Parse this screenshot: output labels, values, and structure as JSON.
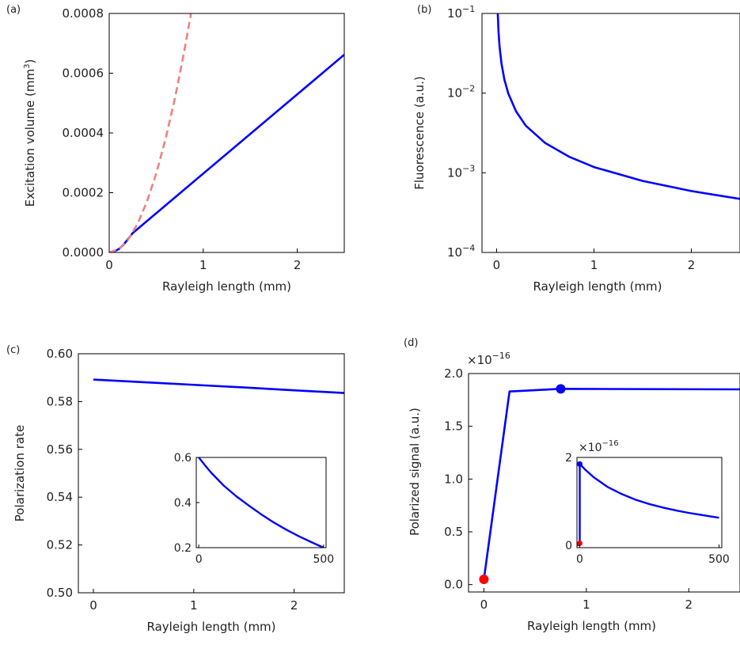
{
  "chart_data": [
    {
      "id": "a",
      "panel_label": "(a)",
      "type": "line",
      "xlabel": "Rayleigh length (mm)",
      "ylabel": "Excitation volume (mm³)",
      "xlim": [
        0,
        2.5
      ],
      "ylim": [
        0,
        0.0008
      ],
      "xticks": [
        0,
        1,
        2
      ],
      "xtick_labels": [
        "0",
        "1",
        "2"
      ],
      "yticks": [
        0,
        0.0002,
        0.0004,
        0.0006,
        0.0008
      ],
      "ytick_labels": [
        "0.0000",
        "0.0002",
        "0.0004",
        "0.0006",
        "0.0008"
      ],
      "grid": false,
      "series": [
        {
          "style": "solid",
          "color": "#0000ff",
          "x": [
            0,
            0.05,
            0.1,
            0.15,
            0.2,
            0.25,
            2.5
          ],
          "y": [
            0,
            3e-06,
            1.1e-05,
            2.5e-05,
            4.5e-05,
            6.5e-05,
            0.000662
          ]
        },
        {
          "style": "dashed",
          "color": "#f08080",
          "x": [
            0,
            0.1,
            0.2,
            0.3,
            0.4,
            0.5,
            0.6,
            0.7,
            0.8,
            0.87
          ],
          "y": [
            0,
            1.06e-05,
            4.23e-05,
            9.52e-05,
            0.000169,
            0.000264,
            0.000381,
            0.000518,
            0.000677,
            0.0008
          ]
        }
      ]
    },
    {
      "id": "b",
      "panel_label": "(b)",
      "type": "line",
      "xlabel": "Rayleigh length (mm)",
      "ylabel": "Fluorescence (a.u.)",
      "xlim": [
        -0.15,
        2.5
      ],
      "ylim": [
        0.0001,
        0.1
      ],
      "yscale": "log",
      "xticks": [
        0,
        1,
        2
      ],
      "xtick_labels": [
        "0",
        "1",
        "2"
      ],
      "yticks": [
        0.0001,
        0.001,
        0.01,
        0.1
      ],
      "ytick_base": [
        "10",
        "10",
        "10",
        "10"
      ],
      "ytick_exp": [
        "−4",
        "−3",
        "−2",
        "−1"
      ],
      "grid": false,
      "series": [
        {
          "style": "solid",
          "color": "#0000ff",
          "x": [
            0.012,
            0.02,
            0.03,
            0.05,
            0.08,
            0.12,
            0.2,
            0.3,
            0.5,
            0.75,
            1.0,
            1.5,
            2.0,
            2.5
          ],
          "y": [
            0.1,
            0.059,
            0.039,
            0.0236,
            0.0148,
            0.0099,
            0.0059,
            0.0039,
            0.00236,
            0.00158,
            0.00118,
            0.00079,
            0.00059,
            0.00047
          ]
        }
      ]
    },
    {
      "id": "c",
      "panel_label": "(c)",
      "type": "line",
      "xlabel": "Rayleigh length (mm)",
      "ylabel": "Polarization rate",
      "xlim": [
        -0.15,
        2.5
      ],
      "ylim": [
        0.5,
        0.6
      ],
      "xticks": [
        0,
        1,
        2
      ],
      "xtick_labels": [
        "0",
        "1",
        "2"
      ],
      "yticks": [
        0.5,
        0.52,
        0.54,
        0.56,
        0.58,
        0.6
      ],
      "ytick_labels": [
        "0.50",
        "0.52",
        "0.54",
        "0.56",
        "0.58",
        "0.60"
      ],
      "grid": false,
      "series": [
        {
          "style": "solid",
          "color": "#0000ff",
          "x": [
            0,
            0.5,
            1.0,
            1.5,
            2.0,
            2.5
          ],
          "y": [
            0.5892,
            0.5881,
            0.587,
            0.5859,
            0.5847,
            0.5836
          ]
        }
      ],
      "inset": {
        "xlim": [
          -10,
          510
        ],
        "ylim": [
          0.2,
          0.6
        ],
        "xticks": [
          0,
          500
        ],
        "xtick_labels": [
          "0",
          "500"
        ],
        "yticks": [
          0.2,
          0.4,
          0.6
        ],
        "ytick_labels": [
          "0.2",
          "0.4",
          "0.6"
        ],
        "series": [
          {
            "style": "solid",
            "color": "#0000ff",
            "x": [
              0,
              25,
              50,
              100,
              150,
              200,
              250,
              300,
              350,
              400,
              450,
              500
            ],
            "y": [
              0.6,
              0.565,
              0.532,
              0.475,
              0.428,
              0.387,
              0.348,
              0.312,
              0.28,
              0.251,
              0.225,
              0.2
            ]
          }
        ]
      }
    },
    {
      "id": "d",
      "panel_label": "(d)",
      "type": "line",
      "xlabel": "Rayleigh length (mm)",
      "ylabel": "Polarized signal (a.u.)",
      "multiplier_base": "×10",
      "multiplier_exp": "−16",
      "xlim": [
        -0.15,
        2.5
      ],
      "ylim": [
        -0.07,
        2.0
      ],
      "xticks": [
        0,
        1,
        2
      ],
      "xtick_labels": [
        "0",
        "1",
        "2"
      ],
      "yticks": [
        0,
        0.5,
        1.0,
        1.5,
        2.0
      ],
      "ytick_labels": [
        "0.0",
        "0.5",
        "1.0",
        "1.5",
        "2.0"
      ],
      "grid": false,
      "series": [
        {
          "style": "solid",
          "color": "#0000ff",
          "x": [
            0,
            0.25,
            0.75,
            2.5
          ],
          "y": [
            0.05,
            1.83,
            1.855,
            1.85
          ]
        }
      ],
      "markers": [
        {
          "x": 0,
          "y": 0.05,
          "color": "#ff0000"
        },
        {
          "x": 0.75,
          "y": 1.855,
          "color": "#0000ff"
        }
      ],
      "inset": {
        "multiplier_base": "×10",
        "multiplier_exp": "−16",
        "xlim": [
          -10,
          510
        ],
        "ylim": [
          -0.05,
          2.0
        ],
        "xticks": [
          0,
          500
        ],
        "xtick_labels": [
          "0",
          "500"
        ],
        "yticks": [
          0,
          2
        ],
        "ytick_labels": [
          "0",
          "2"
        ],
        "series": [
          {
            "style": "solid",
            "color": "#0000ff",
            "x": [
              0,
              0,
              5,
              20,
              50,
              100,
              150,
              200,
              250,
              300,
              350,
              400,
              450,
              500
            ],
            "y": [
              0.05,
              1.85,
              1.82,
              1.72,
              1.55,
              1.33,
              1.17,
              1.04,
              0.94,
              0.86,
              0.79,
              0.73,
              0.68,
              0.63
            ]
          }
        ],
        "markers": [
          {
            "x": 0,
            "y": 0.05,
            "color": "#ff0000"
          },
          {
            "x": 0,
            "y": 1.85,
            "color": "#0000ff"
          }
        ]
      }
    }
  ]
}
